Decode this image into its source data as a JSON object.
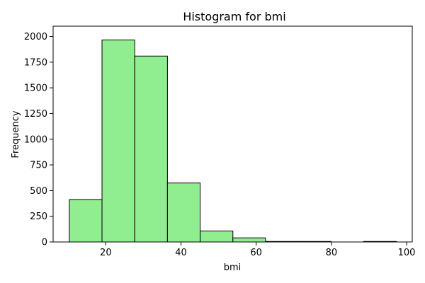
{
  "chart_data": {
    "type": "bar",
    "title": "Histogram for bmi",
    "xlabel": "bmi",
    "ylabel": "Frequency",
    "bin_edges": [
      10.3,
      19.0,
      27.7,
      36.4,
      45.1,
      53.8,
      62.5,
      71.2,
      79.9,
      88.6,
      97.3
    ],
    "values": [
      413,
      1966,
      1809,
      574,
      107,
      40,
      5,
      5,
      0,
      5
    ],
    "xlim": [
      6,
      101.5
    ],
    "ylim": [
      0,
      2100
    ],
    "xticks": [
      20,
      40,
      60,
      80,
      100
    ],
    "yticks": [
      0,
      250,
      500,
      750,
      1000,
      1250,
      1500,
      1750,
      2000
    ],
    "bar_color": "#90ee90",
    "edge_color": "#000000",
    "grid": false
  }
}
